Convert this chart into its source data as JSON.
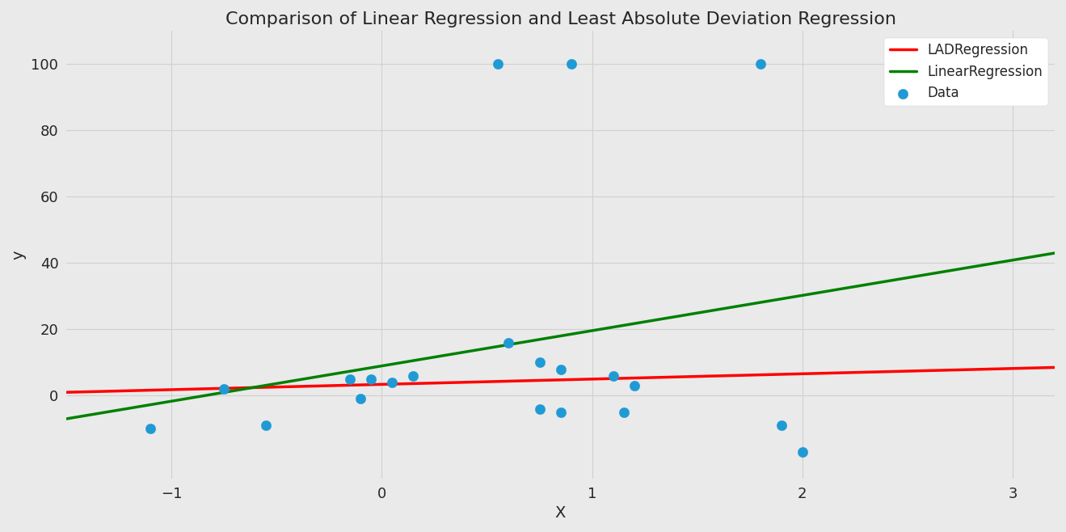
{
  "title": "Comparison of Linear Regression and Least Absolute Deviation Regression",
  "xlabel": "X",
  "ylabel": "y",
  "background_color": "#eaeaea",
  "grid_color": "#ffffff",
  "scatter_points": [
    [
      -1.1,
      -10
    ],
    [
      -0.75,
      2
    ],
    [
      -0.55,
      -9
    ],
    [
      -0.15,
      5
    ],
    [
      -0.05,
      5
    ],
    [
      0.05,
      4
    ],
    [
      0.15,
      6
    ],
    [
      -0.1,
      -1
    ],
    [
      0.55,
      100
    ],
    [
      0.6,
      16
    ],
    [
      0.75,
      10
    ],
    [
      0.85,
      8
    ],
    [
      0.9,
      100
    ],
    [
      0.75,
      -4
    ],
    [
      0.85,
      -5
    ],
    [
      1.1,
      6
    ],
    [
      1.2,
      3
    ],
    [
      1.15,
      -5
    ],
    [
      1.8,
      100
    ],
    [
      1.9,
      -9
    ],
    [
      2.0,
      -17
    ]
  ],
  "scatter_color": "#1f9ad4",
  "scatter_size": 80,
  "lad_line": {
    "x": [
      -1.5,
      3.2
    ],
    "y": [
      1.0,
      8.5
    ],
    "color": "red",
    "lw": 2.5
  },
  "lr_line": {
    "x": [
      -1.5,
      3.2
    ],
    "y": [
      -7.0,
      43.0
    ],
    "color": "green",
    "lw": 2.5
  },
  "xlim": [
    -1.5,
    3.2
  ],
  "ylim": [
    -25,
    110
  ],
  "xticks": [
    -1,
    0,
    1,
    2,
    3
  ],
  "yticks": [
    0,
    20,
    40,
    60,
    80,
    100
  ],
  "legend_labels": [
    "LADRegression",
    "LinearRegression",
    "Data"
  ],
  "title_fontsize": 16,
  "axis_label_fontsize": 14,
  "tick_labelsize": 13
}
